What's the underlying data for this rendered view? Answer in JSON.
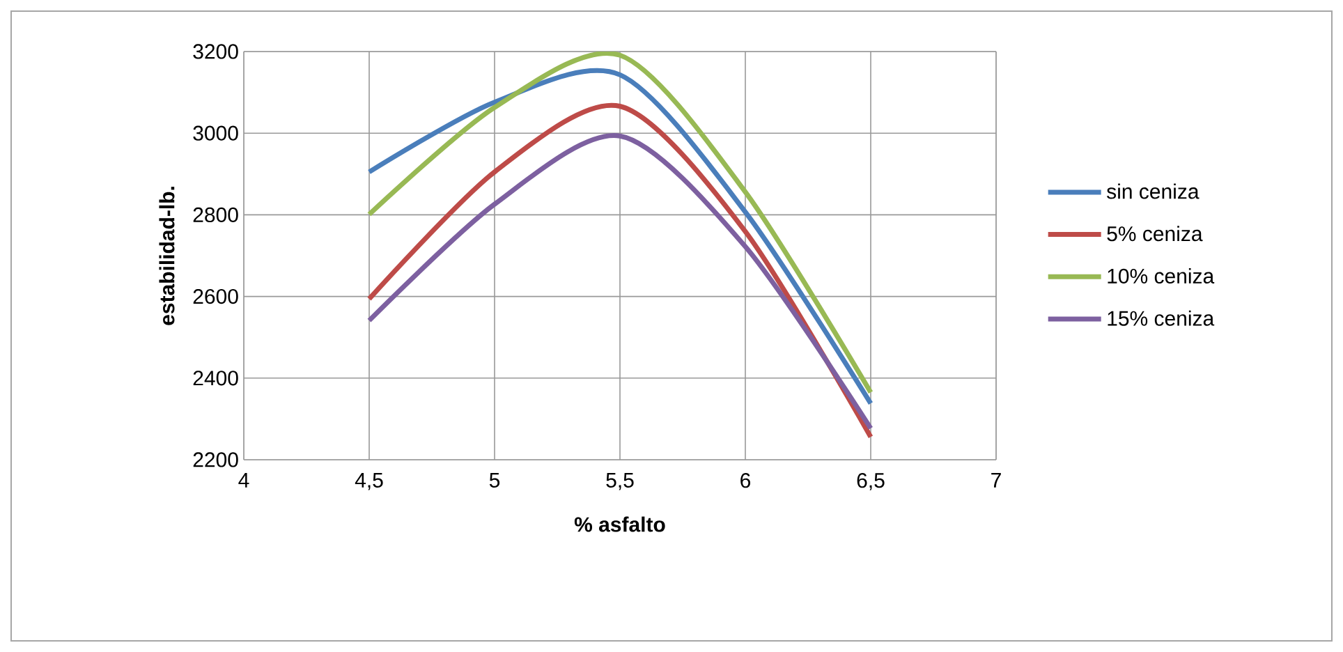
{
  "chart_data": {
    "type": "line",
    "xlabel": "% asfalto",
    "ylabel": "estabilidad-lb.",
    "x": [
      4.5,
      5,
      5.5,
      6,
      6.5
    ],
    "series": [
      {
        "name": "sin ceniza",
        "color": "#4a7ebb",
        "values": [
          2905,
          3076,
          3143,
          2807,
          2338
        ]
      },
      {
        "name": "5% ceniza",
        "color": "#be4b48",
        "values": [
          2594,
          2905,
          3066,
          2759,
          2256
        ]
      },
      {
        "name": "10% ceniza",
        "color": "#98b954",
        "values": [
          2801,
          3063,
          3191,
          2856,
          2365
        ]
      },
      {
        "name": "15% ceniza",
        "color": "#7d60a0",
        "values": [
          2541,
          2826,
          2993,
          2722,
          2277
        ]
      }
    ],
    "xlim": [
      4,
      7
    ],
    "ylim": [
      2200,
      3200
    ],
    "xticks": [
      4,
      {
        "value": 4.5,
        "label": "4,5"
      },
      5,
      {
        "value": 5.5,
        "label": "5,5"
      },
      6,
      {
        "value": 6.5,
        "label": "6,5"
      },
      7
    ],
    "yticks": [
      2200,
      2400,
      2600,
      2800,
      3000,
      3200
    ],
    "grid": true,
    "legend": "right",
    "marker": "none",
    "line_style": "solid"
  }
}
